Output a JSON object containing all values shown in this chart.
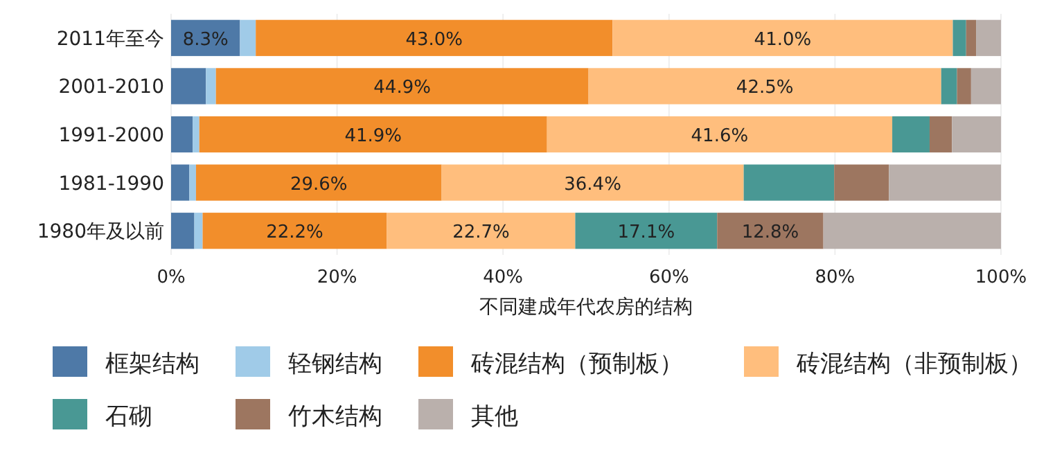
{
  "chart_data": {
    "type": "bar",
    "orientation": "horizontal",
    "stacked": true,
    "xlabel": "不同建成年代农房的结构",
    "categories": [
      "2011年至今",
      "2001-2010",
      "1991-2000",
      "1981-1990",
      "1980年及以前"
    ],
    "xlim": [
      0,
      100
    ],
    "xticks": [
      {
        "value": 0,
        "label": "0%"
      },
      {
        "value": 20,
        "label": "20%"
      },
      {
        "value": 40,
        "label": "40%"
      },
      {
        "value": 60,
        "label": "60%"
      },
      {
        "value": 80,
        "label": "80%"
      },
      {
        "value": 100,
        "label": "100%"
      }
    ],
    "grid": "x",
    "legend": "bottom",
    "series": [
      {
        "name": "框架结构",
        "color": "#4e79a7",
        "values": [
          8.3,
          4.2,
          2.6,
          2.2,
          2.8
        ],
        "value_labels": [
          "8.3%",
          null,
          null,
          null,
          null
        ]
      },
      {
        "name": "轻钢结构",
        "color": "#a0cbe8",
        "values": [
          1.9,
          1.2,
          0.8,
          0.8,
          1.0
        ],
        "value_labels": [
          null,
          null,
          null,
          null,
          null
        ]
      },
      {
        "name": "砖混结构（预制板）",
        "color": "#f28e2b",
        "values": [
          43.0,
          44.9,
          41.9,
          29.6,
          22.2
        ],
        "value_labels": [
          "43.0%",
          "44.9%",
          "41.9%",
          "29.6%",
          "22.2%"
        ]
      },
      {
        "name": "砖混结构（非预制板）",
        "color": "#ffbe7d",
        "values": [
          41.0,
          42.5,
          41.6,
          36.4,
          22.7
        ],
        "value_labels": [
          "41.0%",
          "42.5%",
          "41.6%",
          "36.4%",
          "22.7%"
        ]
      },
      {
        "name": "石砌",
        "color": "#499894",
        "values": [
          1.6,
          1.9,
          4.5,
          10.9,
          17.1
        ],
        "value_labels": [
          null,
          null,
          null,
          null,
          "17.1%"
        ]
      },
      {
        "name": "竹木结构",
        "color": "#9d7660",
        "values": [
          1.2,
          1.7,
          2.7,
          6.6,
          12.8
        ],
        "value_labels": [
          null,
          null,
          null,
          null,
          "12.8%"
        ]
      },
      {
        "name": "其他",
        "color": "#bab0ac",
        "values": [
          3.0,
          3.6,
          5.9,
          13.5,
          21.4
        ],
        "value_labels": [
          null,
          null,
          null,
          null,
          null
        ]
      }
    ]
  }
}
